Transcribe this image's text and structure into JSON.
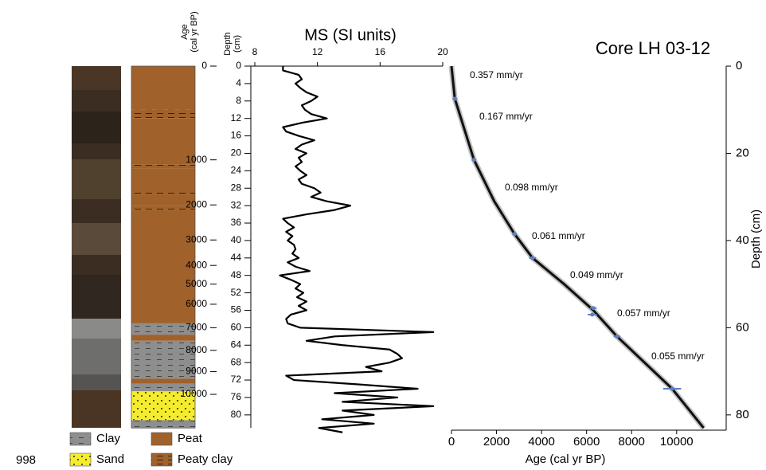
{
  "footer": "998",
  "chart_data": [
    {
      "type": "lithology",
      "age_label": [
        "Age",
        "(cal yr BP)"
      ],
      "age_ticks": [
        0,
        1000,
        2000,
        3000,
        4000,
        5000,
        6000,
        7000,
        8000,
        9000,
        10000
      ],
      "units": [
        {
          "lithology": "Peat",
          "top": 0,
          "bottom": 10
        },
        {
          "lithology": "Peaty clay",
          "top": 10,
          "bottom": 12
        },
        {
          "lithology": "Peat",
          "top": 12,
          "bottom": 22.5
        },
        {
          "lithology": "Peaty clay",
          "top": 22.5,
          "bottom": 23.5
        },
        {
          "lithology": "Peat",
          "top": 23.5,
          "bottom": 28.5
        },
        {
          "lithology": "Peaty clay",
          "top": 28.5,
          "bottom": 29.5
        },
        {
          "lithology": "Peat",
          "top": 29.5,
          "bottom": 32
        },
        {
          "lithology": "Peaty clay",
          "top": 32,
          "bottom": 33
        },
        {
          "lithology": "Peat",
          "top": 33,
          "bottom": 59
        },
        {
          "lithology": "Clay",
          "top": 59,
          "bottom": 61.6
        },
        {
          "lithology": "Peat",
          "top": 61.6,
          "bottom": 63
        },
        {
          "lithology": "Clay",
          "top": 63,
          "bottom": 71.7
        },
        {
          "lithology": "Peat",
          "top": 71.7,
          "bottom": 72.8
        },
        {
          "lithology": "Clay",
          "top": 72.8,
          "bottom": 74.6
        },
        {
          "lithology": "Sand",
          "top": 74.6,
          "bottom": 81.2
        },
        {
          "lithology": "Clay",
          "top": 81.2,
          "bottom": 83
        }
      ],
      "legend": [
        {
          "name": "Clay",
          "color": "#8e8e8e"
        },
        {
          "name": "Sand",
          "color": "#f4ec2c"
        },
        {
          "name": "Peat",
          "color": "#a0612a"
        },
        {
          "name": "Peaty clay",
          "color": "#a0612a"
        }
      ]
    },
    {
      "type": "line",
      "title": "MS (SI units)",
      "y_label": [
        "Depth",
        "(cm)"
      ],
      "color": "#000000",
      "xlim": [
        8,
        20
      ],
      "xticks": [
        8,
        12,
        16,
        20
      ],
      "ylim": [
        0,
        83.5
      ],
      "yticks": [
        0,
        4,
        8,
        12,
        16,
        20,
        24,
        28,
        32,
        36,
        40,
        44,
        48,
        52,
        56,
        60,
        64,
        68,
        72,
        76,
        80
      ],
      "y": [
        0,
        1,
        2,
        3,
        4,
        5,
        6,
        7,
        8,
        9,
        10,
        11,
        12,
        13,
        14,
        15,
        16,
        17,
        18,
        19,
        20,
        21,
        22,
        23,
        24,
        25,
        26,
        27,
        28,
        29,
        30,
        31,
        32,
        33,
        34,
        35,
        36,
        37,
        38,
        39,
        40,
        41,
        42,
        43,
        44,
        45,
        46,
        47,
        48,
        49,
        50,
        51,
        52,
        53,
        54,
        55,
        56,
        57,
        58,
        59,
        60,
        61,
        62,
        63,
        64,
        65,
        66,
        67,
        68,
        69,
        70,
        71,
        72,
        73,
        74,
        75,
        76,
        77,
        78,
        79,
        80,
        81,
        82,
        83,
        84
      ],
      "values": [
        9.8,
        9.8,
        10.8,
        11.0,
        10.6,
        10.9,
        11.3,
        12.0,
        11.6,
        11.0,
        11.2,
        11.6,
        12.6,
        11.0,
        9.8,
        10.0,
        10.8,
        11.8,
        11.0,
        10.6,
        11.3,
        10.8,
        11.0,
        10.6,
        10.9,
        11.3,
        10.8,
        11.0,
        11.8,
        12.2,
        11.6,
        12.6,
        14.1,
        13.1,
        11.3,
        9.8,
        10.1,
        10.5,
        10.0,
        10.4,
        10.1,
        10.5,
        10.6,
        10.4,
        10.8,
        10.1,
        10.6,
        11.5,
        9.6,
        10.3,
        10.9,
        10.6,
        11.1,
        10.7,
        11.3,
        10.8,
        11.3,
        10.3,
        10.0,
        10.1,
        10.9,
        19.4,
        13.1,
        11.3,
        13.6,
        16.6,
        17.1,
        17.4,
        16.6,
        15.1,
        16.1,
        10.0,
        10.5,
        14.6,
        18.4,
        13.1,
        17.1,
        13.6,
        19.4,
        13.6,
        15.6,
        12.3,
        15.6,
        12.1,
        13.6
      ]
    },
    {
      "type": "age-model",
      "title": "Core LH 03-12",
      "x_label": "Age (cal yr BP)",
      "y_label": "Depth (cm)",
      "color": "#111111",
      "date_color": "#5b7fc0",
      "xlim": [
        0,
        12200
      ],
      "xticks": [
        0,
        2000,
        4000,
        6000,
        8000,
        10000
      ],
      "ylim": [
        0,
        83.5
      ],
      "yticks": [
        0,
        20,
        40,
        60,
        80
      ],
      "x": [
        0,
        150,
        1000,
        1900,
        2800,
        3600,
        5000,
        6300,
        7350,
        9800,
        11200
      ],
      "y": [
        0,
        7.5,
        21.5,
        31,
        38.5,
        44,
        50,
        56,
        62,
        74,
        83
      ],
      "dates": {
        "age": [
          150,
          1000,
          2800,
          3600,
          6300,
          6250,
          7350,
          9800
        ],
        "error": [
          100,
          100,
          100,
          150,
          150,
          200,
          150,
          400
        ],
        "depth": [
          7.5,
          21.5,
          38.5,
          44,
          55.5,
          57,
          62,
          74
        ]
      },
      "rates": [
        "0.357 mm/yr",
        "0.167 mm/yr",
        "0.098 mm/yr",
        "0.061 mm/yr",
        "0.049 mm/yr",
        "0.057 mm/yr",
        "0.055 mm/yr"
      ]
    }
  ]
}
